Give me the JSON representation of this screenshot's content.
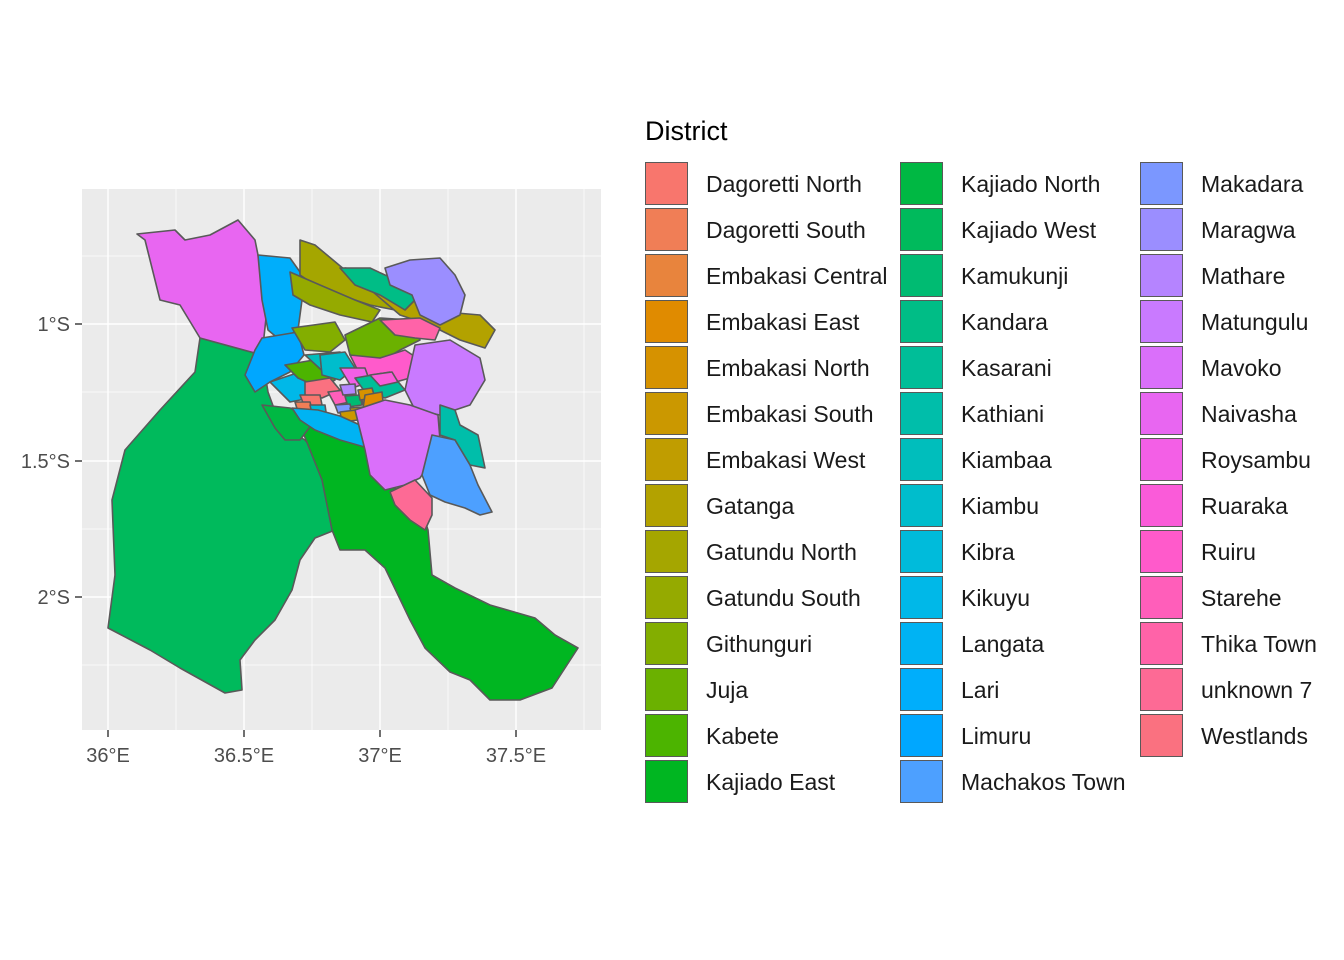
{
  "map": {
    "x_ticks": [
      "36°E",
      "36.5°E",
      "37°E",
      "37.5°E"
    ],
    "y_ticks": [
      "1°S",
      "1.5°S",
      "2°S"
    ],
    "panel_background": "#ebebeb",
    "gridline_color": "#ffffff",
    "border_color": "#595959"
  },
  "legend": {
    "title": "District",
    "items": [
      {
        "label": "Dagoretti North",
        "color": "#F8766D"
      },
      {
        "label": "Dagoretti South",
        "color": "#F07E56"
      },
      {
        "label": "Embakasi Central",
        "color": "#E8843D"
      },
      {
        "label": "Embakasi East",
        "color": "#E08B00"
      },
      {
        "label": "Embakasi North",
        "color": "#D69200"
      },
      {
        "label": "Embakasi South",
        "color": "#CB9800"
      },
      {
        "label": "Embakasi West",
        "color": "#C09D00"
      },
      {
        "label": "Gatanga",
        "color": "#B3A200"
      },
      {
        "label": "Gatundu North",
        "color": "#A5A600"
      },
      {
        "label": "Gatundu South",
        "color": "#95AA00"
      },
      {
        "label": "Githunguri",
        "color": "#83AE00"
      },
      {
        "label": "Juja",
        "color": "#6BB100"
      },
      {
        "label": "Kabete",
        "color": "#4CB400"
      },
      {
        "label": "Kajiado East",
        "color": "#00B621"
      },
      {
        "label": "Kajiado North",
        "color": "#00B843"
      },
      {
        "label": "Kajiado West",
        "color": "#00BA5C"
      },
      {
        "label": "Kamukunji",
        "color": "#00BB72"
      },
      {
        "label": "Kandara",
        "color": "#00BD86"
      },
      {
        "label": "Kasarani",
        "color": "#00BE98"
      },
      {
        "label": "Kathiani",
        "color": "#00BEAA"
      },
      {
        "label": "Kiambaa",
        "color": "#00BEBC"
      },
      {
        "label": "Kiambu",
        "color": "#00BDCC"
      },
      {
        "label": "Kibra",
        "color": "#00BBDB"
      },
      {
        "label": "Kikuyu",
        "color": "#00B8E8"
      },
      {
        "label": "Langata",
        "color": "#00B3F3"
      },
      {
        "label": "Lari",
        "color": "#00AEFB"
      },
      {
        "label": "Limuru",
        "color": "#00A7FF"
      },
      {
        "label": "Machakos Town",
        "color": "#4DA0FF"
      },
      {
        "label": "Makadara",
        "color": "#7B97FF"
      },
      {
        "label": "Maragwa",
        "color": "#9B8EFF"
      },
      {
        "label": "Mathare",
        "color": "#B584FF"
      },
      {
        "label": "Matungulu",
        "color": "#C97AFF"
      },
      {
        "label": "Mavoko",
        "color": "#DA6FFA"
      },
      {
        "label": "Naivasha",
        "color": "#E866F1"
      },
      {
        "label": "Roysambu",
        "color": "#F35FE6"
      },
      {
        "label": "Ruaraka",
        "color": "#FA5BD9"
      },
      {
        "label": "Ruiru",
        "color": "#FF5ACB"
      },
      {
        "label": "Starehe",
        "color": "#FF5EBA"
      },
      {
        "label": "Thika Town",
        "color": "#FF63A8"
      },
      {
        "label": "unknown 7",
        "color": "#FD6A95"
      },
      {
        "label": "Westlands",
        "color": "#FA7180"
      }
    ]
  }
}
